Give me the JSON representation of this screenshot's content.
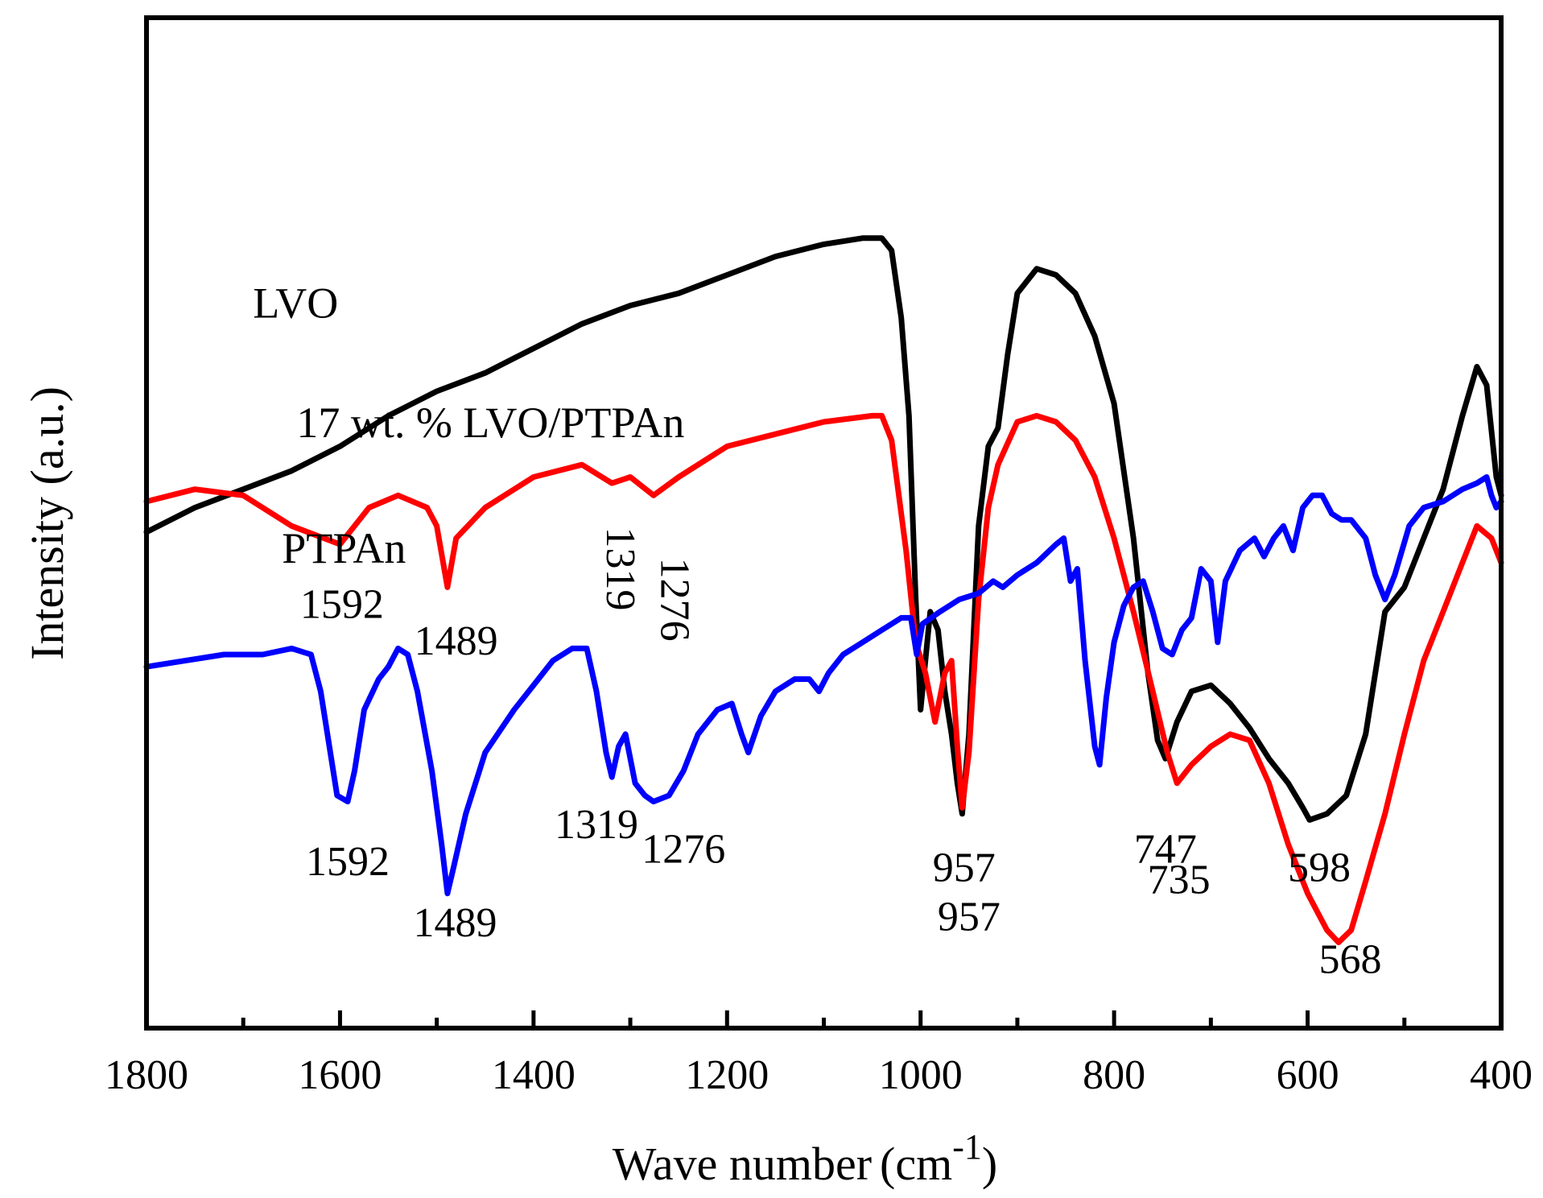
{
  "chart_data": {
    "type": "line",
    "title": "",
    "xlabel": "Wave number",
    "xlabel_unit": "(cm",
    "xlabel_unit_exp": "-1",
    "xlabel_unit_close": ")",
    "ylabel": "Intensity (a.u.)",
    "xlim": [
      1800,
      400
    ],
    "x_reversed": true,
    "y_ticks_shown": false,
    "xticks": [
      "1800",
      "1600",
      "1400",
      "1200",
      "1000",
      "800",
      "600",
      "400"
    ],
    "series": [
      {
        "name": "LVO",
        "color": "#000000",
        "points": [
          [
            1800,
            0.51
          ],
          [
            1750,
            0.55
          ],
          [
            1700,
            0.58
          ],
          [
            1650,
            0.61
          ],
          [
            1600,
            0.65
          ],
          [
            1550,
            0.7
          ],
          [
            1500,
            0.74
          ],
          [
            1450,
            0.77
          ],
          [
            1400,
            0.81
          ],
          [
            1350,
            0.85
          ],
          [
            1300,
            0.88
          ],
          [
            1250,
            0.9
          ],
          [
            1200,
            0.93
          ],
          [
            1150,
            0.96
          ],
          [
            1100,
            0.98
          ],
          [
            1060,
            0.99
          ],
          [
            1040,
            0.99
          ],
          [
            1030,
            0.97
          ],
          [
            1020,
            0.86
          ],
          [
            1012,
            0.7
          ],
          [
            1005,
            0.4
          ],
          [
            1000,
            0.22
          ],
          [
            995,
            0.3
          ],
          [
            990,
            0.38
          ],
          [
            982,
            0.35
          ],
          [
            975,
            0.25
          ],
          [
            968,
            0.18
          ],
          [
            962,
            0.1
          ],
          [
            957,
            0.05
          ],
          [
            950,
            0.18
          ],
          [
            940,
            0.52
          ],
          [
            930,
            0.65
          ],
          [
            920,
            0.68
          ],
          [
            910,
            0.8
          ],
          [
            900,
            0.9
          ],
          [
            880,
            0.94
          ],
          [
            860,
            0.93
          ],
          [
            840,
            0.9
          ],
          [
            820,
            0.83
          ],
          [
            800,
            0.72
          ],
          [
            780,
            0.5
          ],
          [
            765,
            0.28
          ],
          [
            755,
            0.17
          ],
          [
            747,
            0.14
          ],
          [
            735,
            0.2
          ],
          [
            720,
            0.25
          ],
          [
            700,
            0.26
          ],
          [
            680,
            0.23
          ],
          [
            660,
            0.19
          ],
          [
            640,
            0.14
          ],
          [
            620,
            0.1
          ],
          [
            605,
            0.06
          ],
          [
            598,
            0.04
          ],
          [
            580,
            0.05
          ],
          [
            560,
            0.08
          ],
          [
            540,
            0.18
          ],
          [
            520,
            0.38
          ],
          [
            500,
            0.42
          ],
          [
            480,
            0.5
          ],
          [
            460,
            0.58
          ],
          [
            440,
            0.7
          ],
          [
            425,
            0.78
          ],
          [
            415,
            0.75
          ],
          [
            405,
            0.6
          ],
          [
            400,
            0.57
          ]
        ]
      },
      {
        "name": "17 wt. % LVO/PTPAn",
        "color": "#ff0000",
        "points": [
          [
            1800,
            0.56
          ],
          [
            1750,
            0.58
          ],
          [
            1700,
            0.57
          ],
          [
            1650,
            0.52
          ],
          [
            1600,
            0.49
          ],
          [
            1570,
            0.55
          ],
          [
            1540,
            0.57
          ],
          [
            1510,
            0.55
          ],
          [
            1500,
            0.52
          ],
          [
            1489,
            0.42
          ],
          [
            1480,
            0.5
          ],
          [
            1450,
            0.55
          ],
          [
            1400,
            0.6
          ],
          [
            1350,
            0.62
          ],
          [
            1319,
            0.59
          ],
          [
            1300,
            0.6
          ],
          [
            1276,
            0.57
          ],
          [
            1250,
            0.6
          ],
          [
            1200,
            0.65
          ],
          [
            1150,
            0.67
          ],
          [
            1100,
            0.69
          ],
          [
            1050,
            0.7
          ],
          [
            1040,
            0.7
          ],
          [
            1030,
            0.66
          ],
          [
            1015,
            0.48
          ],
          [
            1005,
            0.33
          ],
          [
            995,
            0.28
          ],
          [
            985,
            0.2
          ],
          [
            975,
            0.28
          ],
          [
            968,
            0.3
          ],
          [
            962,
            0.16
          ],
          [
            957,
            0.06
          ],
          [
            950,
            0.15
          ],
          [
            940,
            0.4
          ],
          [
            930,
            0.55
          ],
          [
            920,
            0.62
          ],
          [
            900,
            0.69
          ],
          [
            880,
            0.7
          ],
          [
            860,
            0.69
          ],
          [
            840,
            0.66
          ],
          [
            820,
            0.6
          ],
          [
            800,
            0.5
          ],
          [
            780,
            0.38
          ],
          [
            760,
            0.25
          ],
          [
            745,
            0.15
          ],
          [
            735,
            0.1
          ],
          [
            720,
            0.13
          ],
          [
            700,
            0.16
          ],
          [
            680,
            0.18
          ],
          [
            660,
            0.17
          ],
          [
            640,
            0.1
          ],
          [
            620,
            0.0
          ],
          [
            600,
            -0.08
          ],
          [
            580,
            -0.14
          ],
          [
            568,
            -0.16
          ],
          [
            555,
            -0.14
          ],
          [
            540,
            -0.06
          ],
          [
            520,
            0.05
          ],
          [
            500,
            0.18
          ],
          [
            480,
            0.3
          ],
          [
            460,
            0.38
          ],
          [
            440,
            0.46
          ],
          [
            425,
            0.52
          ],
          [
            410,
            0.5
          ],
          [
            400,
            0.46
          ]
        ]
      },
      {
        "name": "PTPAn",
        "color": "#0000ff",
        "points": [
          [
            1800,
            0.29
          ],
          [
            1760,
            0.3
          ],
          [
            1720,
            0.31
          ],
          [
            1680,
            0.31
          ],
          [
            1650,
            0.32
          ],
          [
            1630,
            0.31
          ],
          [
            1620,
            0.25
          ],
          [
            1610,
            0.15
          ],
          [
            1603,
            0.08
          ],
          [
            1592,
            0.07
          ],
          [
            1585,
            0.12
          ],
          [
            1575,
            0.22
          ],
          [
            1560,
            0.27
          ],
          [
            1550,
            0.29
          ],
          [
            1540,
            0.32
          ],
          [
            1530,
            0.31
          ],
          [
            1520,
            0.25
          ],
          [
            1505,
            0.12
          ],
          [
            1495,
            0.0
          ],
          [
            1489,
            -0.08
          ],
          [
            1483,
            -0.04
          ],
          [
            1470,
            0.05
          ],
          [
            1450,
            0.15
          ],
          [
            1420,
            0.22
          ],
          [
            1400,
            0.26
          ],
          [
            1380,
            0.3
          ],
          [
            1360,
            0.32
          ],
          [
            1345,
            0.32
          ],
          [
            1335,
            0.25
          ],
          [
            1325,
            0.15
          ],
          [
            1319,
            0.11
          ],
          [
            1312,
            0.16
          ],
          [
            1305,
            0.18
          ],
          [
            1295,
            0.1
          ],
          [
            1285,
            0.08
          ],
          [
            1276,
            0.07
          ],
          [
            1260,
            0.08
          ],
          [
            1245,
            0.12
          ],
          [
            1230,
            0.18
          ],
          [
            1210,
            0.22
          ],
          [
            1195,
            0.23
          ],
          [
            1185,
            0.18
          ],
          [
            1178,
            0.15
          ],
          [
            1165,
            0.21
          ],
          [
            1150,
            0.25
          ],
          [
            1130,
            0.27
          ],
          [
            1115,
            0.27
          ],
          [
            1105,
            0.25
          ],
          [
            1095,
            0.28
          ],
          [
            1080,
            0.31
          ],
          [
            1060,
            0.33
          ],
          [
            1040,
            0.35
          ],
          [
            1020,
            0.37
          ],
          [
            1010,
            0.37
          ],
          [
            1004,
            0.31
          ],
          [
            998,
            0.36
          ],
          [
            980,
            0.38
          ],
          [
            960,
            0.4
          ],
          [
            940,
            0.41
          ],
          [
            925,
            0.43
          ],
          [
            915,
            0.42
          ],
          [
            900,
            0.44
          ],
          [
            880,
            0.46
          ],
          [
            860,
            0.49
          ],
          [
            852,
            0.5
          ],
          [
            845,
            0.43
          ],
          [
            838,
            0.45
          ],
          [
            830,
            0.3
          ],
          [
            820,
            0.16
          ],
          [
            815,
            0.13
          ],
          [
            808,
            0.24
          ],
          [
            800,
            0.33
          ],
          [
            790,
            0.39
          ],
          [
            780,
            0.42
          ],
          [
            770,
            0.43
          ],
          [
            760,
            0.38
          ],
          [
            750,
            0.32
          ],
          [
            740,
            0.31
          ],
          [
            730,
            0.35
          ],
          [
            720,
            0.37
          ],
          [
            710,
            0.45
          ],
          [
            700,
            0.43
          ],
          [
            693,
            0.33
          ],
          [
            685,
            0.43
          ],
          [
            670,
            0.48
          ],
          [
            655,
            0.5
          ],
          [
            645,
            0.47
          ],
          [
            635,
            0.5
          ],
          [
            625,
            0.52
          ],
          [
            615,
            0.48
          ],
          [
            605,
            0.55
          ],
          [
            595,
            0.57
          ],
          [
            585,
            0.57
          ],
          [
            575,
            0.54
          ],
          [
            565,
            0.53
          ],
          [
            555,
            0.53
          ],
          [
            540,
            0.5
          ],
          [
            530,
            0.44
          ],
          [
            520,
            0.4
          ],
          [
            510,
            0.44
          ],
          [
            495,
            0.52
          ],
          [
            480,
            0.55
          ],
          [
            460,
            0.56
          ],
          [
            440,
            0.58
          ],
          [
            425,
            0.59
          ],
          [
            415,
            0.6
          ],
          [
            410,
            0.57
          ],
          [
            405,
            0.55
          ],
          [
            400,
            0.56
          ]
        ]
      }
    ],
    "series_labels": [
      {
        "series": "LVO",
        "text": "LVO",
        "x": 1690,
        "y": 0.86
      },
      {
        "series": "17 wt. % LVO/PTPAn",
        "text": "17 wt. % LVO/PTPAn",
        "x": 1645,
        "y": 0.665
      },
      {
        "series": "PTPAn",
        "text": "PTPAn",
        "x": 1660,
        "y": 0.46
      }
    ],
    "annotations": [
      {
        "series": "LVO",
        "text": "957",
        "x": 955,
        "y": -0.06,
        "rotate": 0
      },
      {
        "series": "LVO",
        "text": "747",
        "x": 747,
        "y": -0.03,
        "rotate": 0
      },
      {
        "series": "LVO",
        "text": "598",
        "x": 588,
        "y": -0.06,
        "rotate": 0
      },
      {
        "series": "17 wt. % LVO/PTPAn",
        "text": "1592",
        "x": 1598,
        "y": 0.37,
        "rotate": 0
      },
      {
        "series": "17 wt. % LVO/PTPAn",
        "text": "1489",
        "x": 1480,
        "y": 0.31,
        "rotate": 0
      },
      {
        "series": "17 wt. % LVO/PTPAn",
        "text": "1319",
        "x": 1324,
        "y": 0.45,
        "rotate": 90
      },
      {
        "series": "17 wt. % LVO/PTPAn",
        "text": "1276",
        "x": 1268,
        "y": 0.4,
        "rotate": 90
      },
      {
        "series": "17 wt. % LVO/PTPAn",
        "text": "957",
        "x": 950,
        "y": -0.14,
        "rotate": 0
      },
      {
        "series": "17 wt. % LVO/PTPAn",
        "text": "735",
        "x": 733,
        "y": -0.08,
        "rotate": 0
      },
      {
        "series": "17 wt. % LVO/PTPAn",
        "text": "568",
        "x": 556,
        "y": -0.21,
        "rotate": 0
      },
      {
        "series": "PTPAn",
        "text": "1592",
        "x": 1592,
        "y": -0.05,
        "rotate": 0
      },
      {
        "series": "PTPAn",
        "text": "1489",
        "x": 1481,
        "y": -0.15,
        "rotate": 0
      },
      {
        "series": "PTPAn",
        "text": "1319",
        "x": 1335,
        "y": 0.01,
        "rotate": 0
      },
      {
        "series": "PTPAn",
        "text": "1276",
        "x": 1245,
        "y": -0.03,
        "rotate": 0
      }
    ]
  }
}
